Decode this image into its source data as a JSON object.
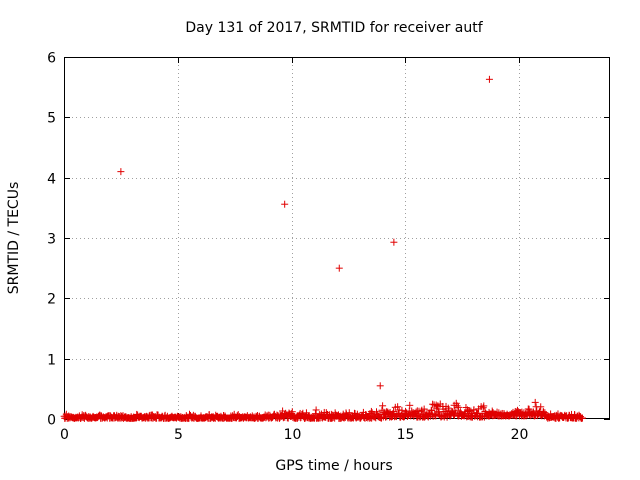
{
  "chart_data": {
    "type": "scatter",
    "title": "Day 131 of 2017, SRMTID for receiver autf",
    "xlabel": "GPS time / hours",
    "ylabel": "SRMTID / TECUs",
    "xlim": [
      0,
      24
    ],
    "ylim": [
      0,
      6
    ],
    "xticks": [
      0,
      5,
      10,
      15,
      20
    ],
    "yticks": [
      0,
      1,
      2,
      3,
      4,
      5,
      6
    ],
    "grid": true,
    "marker": "plus",
    "color": "#e00000",
    "series": [
      {
        "name": "SRMTID",
        "outliers": [
          {
            "x": 2.5,
            "y": 4.1
          },
          {
            "x": 9.7,
            "y": 3.56
          },
          {
            "x": 12.1,
            "y": 2.5
          },
          {
            "x": 13.9,
            "y": 0.55
          },
          {
            "x": 14.5,
            "y": 2.93
          },
          {
            "x": 18.7,
            "y": 5.63
          }
        ],
        "baseline_segments": [
          {
            "x_start": 0.0,
            "x_end": 9.5,
            "y_min": 0.01,
            "y_max": 0.09
          },
          {
            "x_start": 9.5,
            "x_end": 14.0,
            "y_min": 0.01,
            "y_max": 0.16
          },
          {
            "x_start": 14.0,
            "x_end": 18.5,
            "y_min": 0.03,
            "y_max": 0.27
          },
          {
            "x_start": 18.5,
            "x_end": 20.4,
            "y_min": 0.05,
            "y_max": 0.16
          },
          {
            "x_start": 20.4,
            "x_end": 21.2,
            "y_min": 0.05,
            "y_max": 0.29
          },
          {
            "x_start": 21.2,
            "x_end": 22.8,
            "y_min": 0.01,
            "y_max": 0.1
          }
        ],
        "baseline_points_count": 900
      }
    ]
  }
}
